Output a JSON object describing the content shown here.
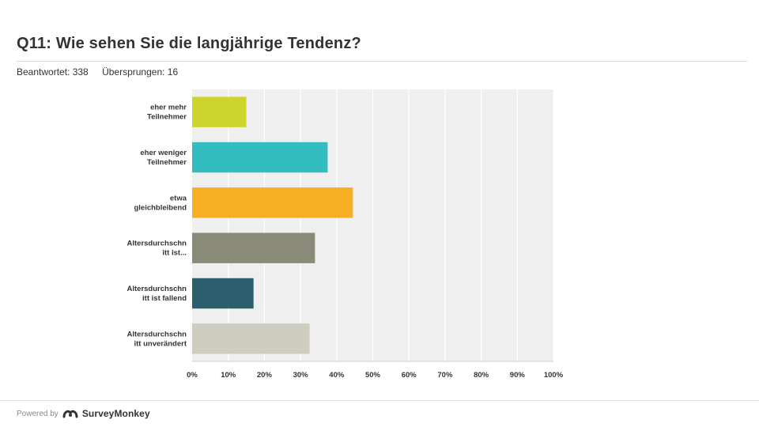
{
  "header": {
    "title": "Q11: Wie sehen Sie die langjährige Tendenz?",
    "answered": "Beantwortet: 338",
    "skipped": "Übersprungen: 16"
  },
  "chart_data": {
    "type": "bar",
    "orientation": "horizontal",
    "categories": [
      [
        "eher mehr",
        "Teilnehmer"
      ],
      [
        "eher weniger",
        "Teilnehmer"
      ],
      [
        "etwa",
        "gleichbleibend"
      ],
      [
        "Altersdurchschn",
        "itt ist..."
      ],
      [
        "Altersdurchschn",
        "itt ist fallend"
      ],
      [
        "Altersdurchschn",
        "itt unverändert"
      ]
    ],
    "values": [
      15,
      37.5,
      44.5,
      34,
      17,
      32.5
    ],
    "colors": [
      "#cdd42b",
      "#33bdbf",
      "#f6ae22",
      "#8a8a78",
      "#2c5f6e",
      "#cfcdbf"
    ],
    "xlim": [
      0,
      100
    ],
    "xticks": [
      "0%",
      "10%",
      "20%",
      "30%",
      "40%",
      "50%",
      "60%",
      "70%",
      "80%",
      "90%",
      "100%"
    ],
    "grid": true,
    "plot_background": "#efefef"
  },
  "footer": {
    "powered_by": "Powered by",
    "brand": "SurveyMonkey"
  }
}
